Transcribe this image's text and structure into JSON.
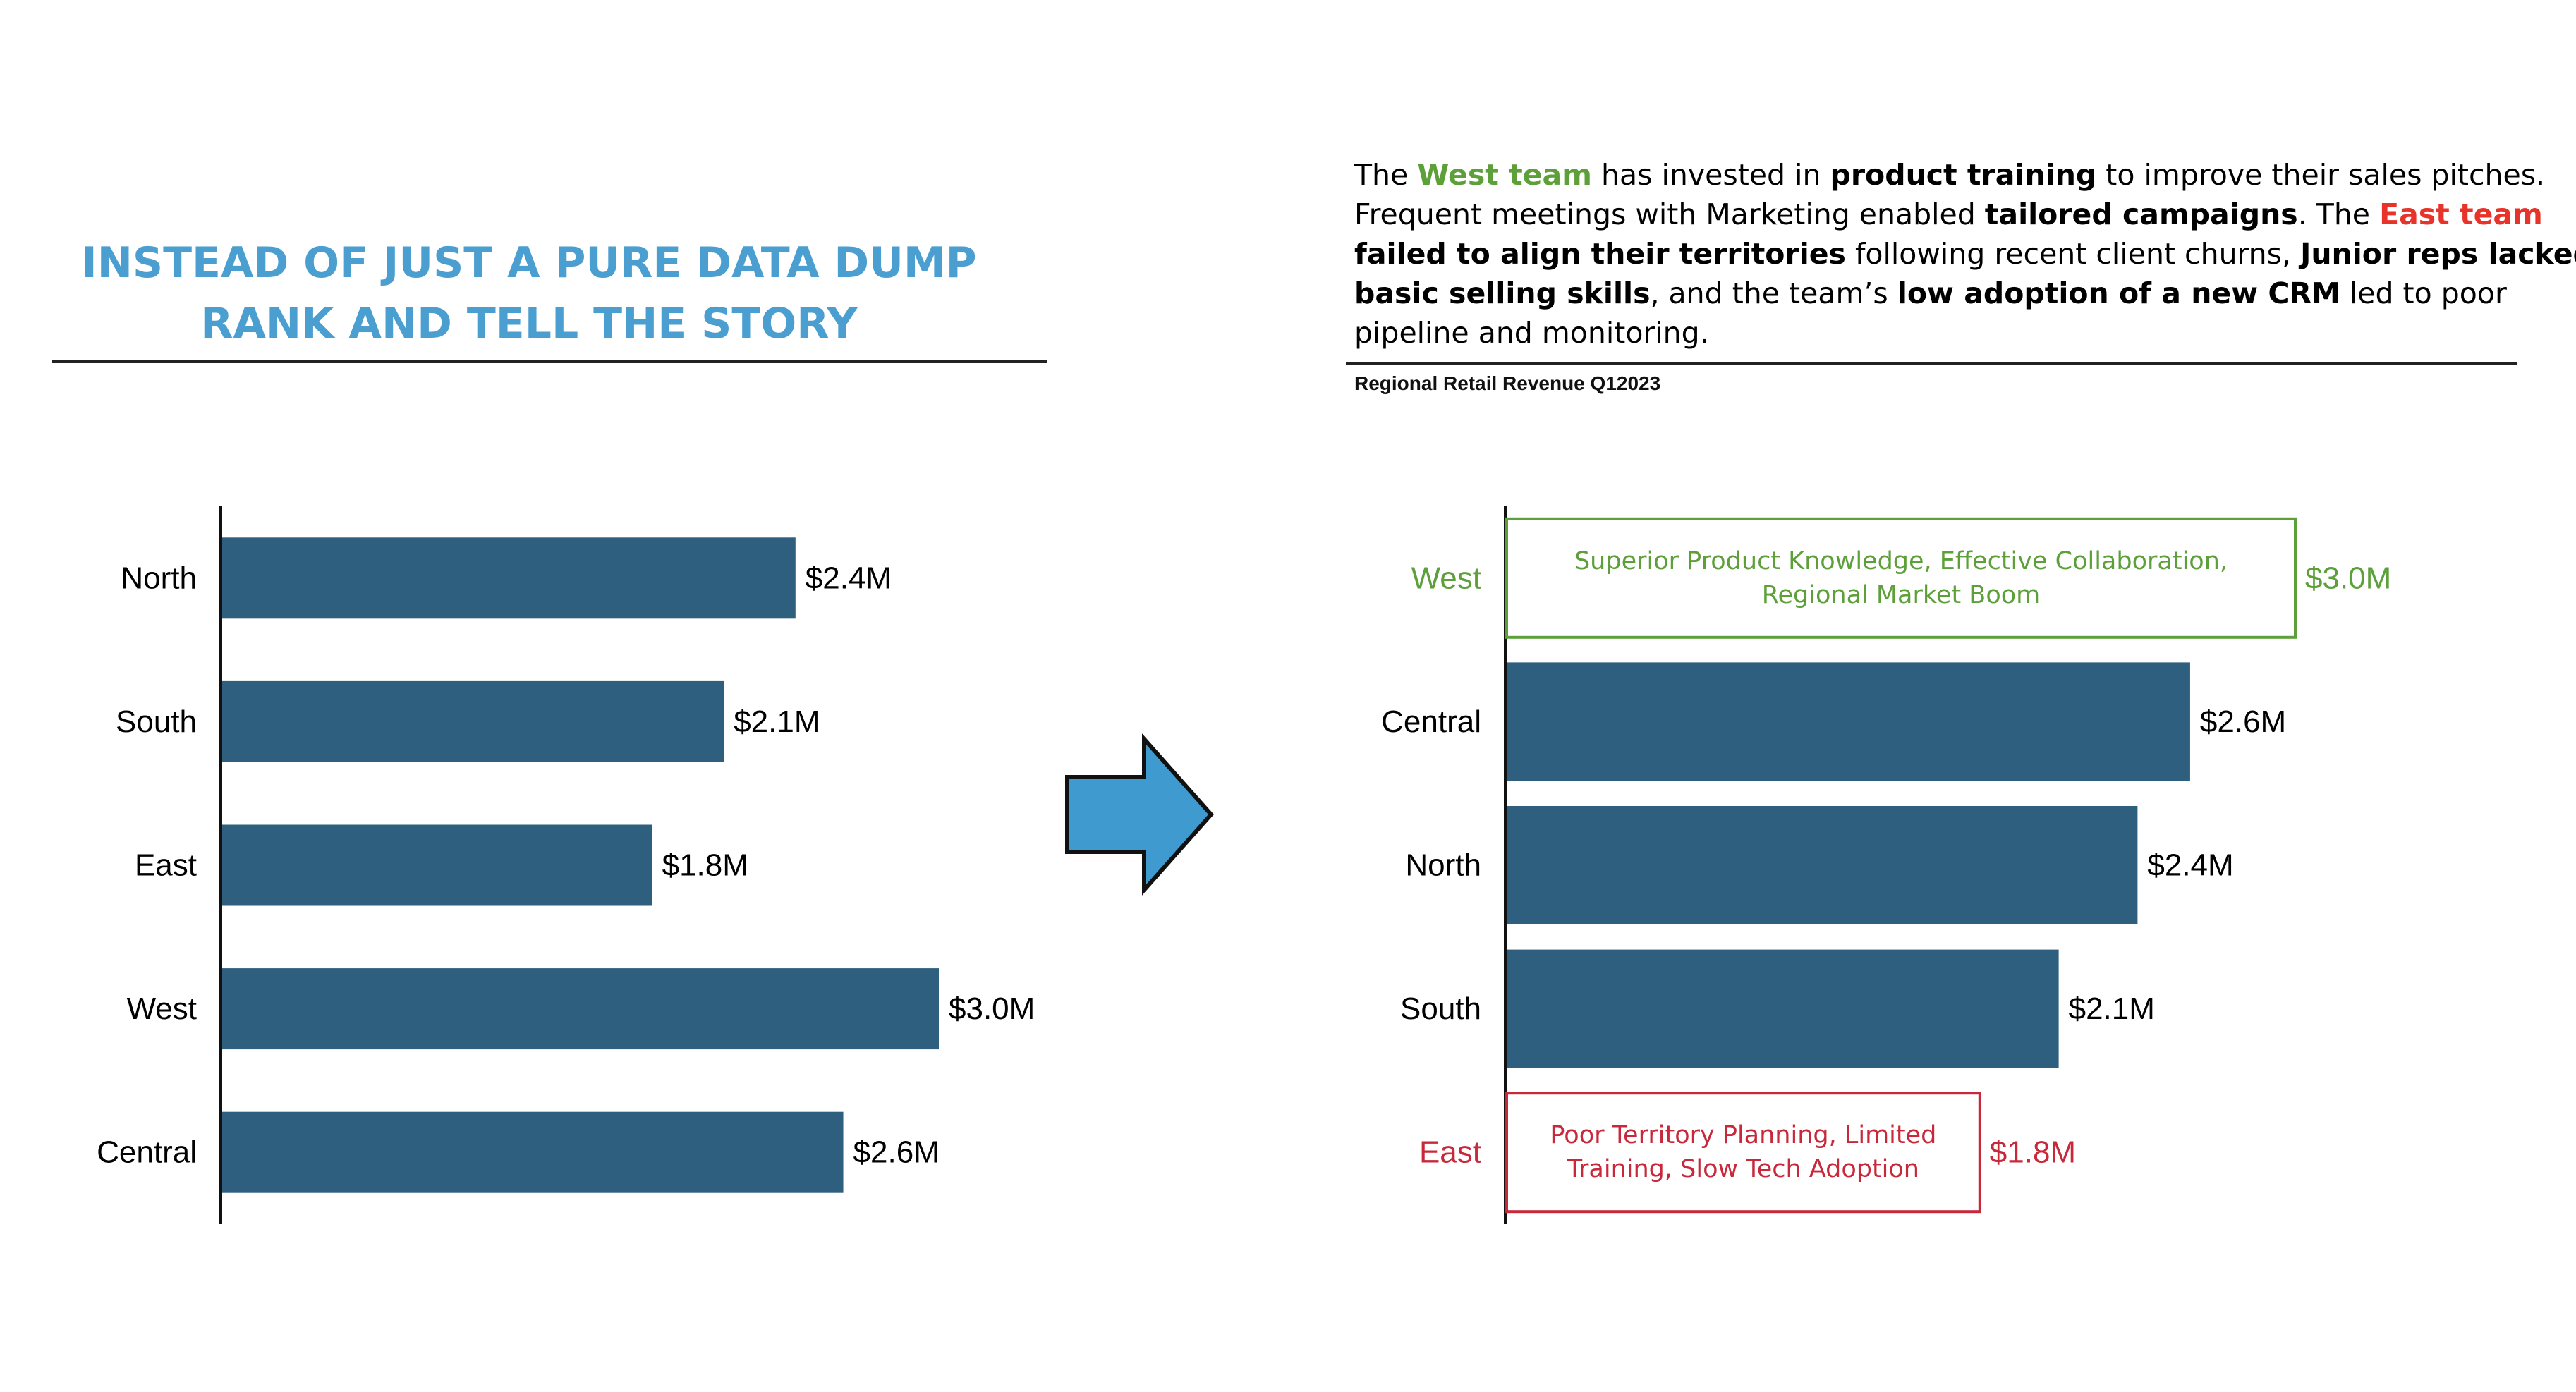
{
  "headline": {
    "line1": "INSTEAD OF JUST A PURE DATA DUMP",
    "line2": "RANK AND TELL THE STORY"
  },
  "story": {
    "s1": "The ",
    "s2": "West team",
    "s3": " has invested in ",
    "s4": "product training",
    "s5": " to improve their sales pitches.",
    "s6": "Frequent meetings with Marketing enabled ",
    "s7": "tailored campaigns",
    "s8": ". The ",
    "s9": "East team",
    "s10": "failed to align their territories",
    "s11": " following recent client churns, ",
    "s12": "Junior reps lacked",
    "s13": "basic selling skills",
    "s14": ", and the team’s ",
    "s15": "low adoption of a new CRM",
    "s16": " led to poor",
    "s17": "pipeline and monitoring."
  },
  "colors": {
    "bar": "#2e5f7f",
    "positive": "#5da03a",
    "negative": "#c8283a",
    "headline": "#4a9fd0",
    "arrow": "#3f9ad0"
  },
  "arrow_icon": "right-arrow-icon",
  "chart_data": [
    {
      "type": "bar",
      "orientation": "horizontal",
      "title": "",
      "categories": [
        "North",
        "South",
        "East",
        "West",
        "Central"
      ],
      "values": [
        2.4,
        2.1,
        1.8,
        3.0,
        2.6
      ],
      "value_labels": [
        "$2.4M",
        "$2.1M",
        "$1.8M",
        "$3.0M",
        "$2.6M"
      ],
      "xlim": [
        0,
        3.0
      ],
      "grid": false,
      "legend": "none"
    },
    {
      "type": "bar",
      "orientation": "horizontal",
      "title": "Regional Retail Revenue Q12023",
      "categories": [
        "West",
        "Central",
        "North",
        "South",
        "East"
      ],
      "values": [
        3.0,
        2.6,
        2.4,
        2.1,
        1.8
      ],
      "value_labels": [
        "$3.0M",
        "$2.6M",
        "$2.4M",
        "$2.1M",
        "$1.8M"
      ],
      "highlight": [
        "positive",
        "none",
        "none",
        "none",
        "negative"
      ],
      "annotations": [
        [
          "Superior Product Knowledge, Effective Collaboration,",
          "Regional Market Boom"
        ],
        [],
        [],
        [],
        [
          "Poor Territory Planning, Limited",
          "Training, Slow Tech Adoption"
        ]
      ],
      "xlim": [
        0,
        3.0
      ],
      "grid": false,
      "legend": "none"
    }
  ]
}
